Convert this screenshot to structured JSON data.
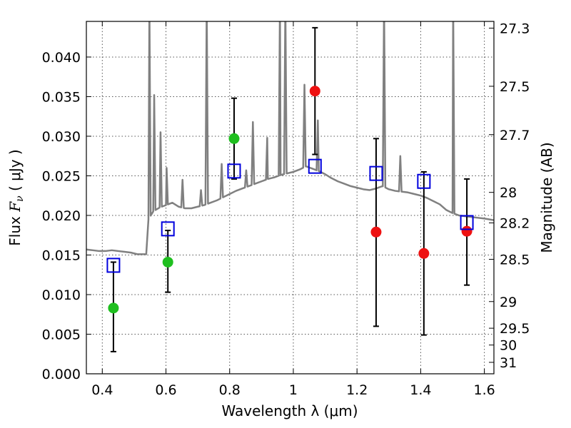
{
  "chart_data": {
    "type": "scatter",
    "xlabel": "Wavelength  λ (μm)",
    "ylabel": "Flux  F_ν  ( μJy )",
    "ylabel_parts": [
      "Flux  ",
      "F",
      "ν",
      "  ( μJy )"
    ],
    "y2label": "Magnitude (AB)",
    "xlim": [
      0.35,
      1.63
    ],
    "ylim": [
      0.0,
      0.0445
    ],
    "grid": true,
    "x_ticks": [
      0.4,
      0.6,
      0.8,
      1.0,
      1.2,
      1.4,
      1.6
    ],
    "x_tick_labels": [
      "0.4",
      "0.6",
      "0.8",
      "1",
      "1.2",
      "1.4",
      "1.6"
    ],
    "y_ticks": [
      0.0,
      0.005,
      0.01,
      0.015,
      0.02,
      0.025,
      0.03,
      0.035,
      0.04
    ],
    "y_tick_labels": [
      "0.000",
      "0.005",
      "0.010",
      "0.015",
      "0.020",
      "0.025",
      "0.030",
      "0.035",
      "0.040"
    ],
    "y2_ticks": [
      {
        "label": "27.3",
        "mag": 27.3
      },
      {
        "label": "27.5",
        "mag": 27.5
      },
      {
        "label": "27.7",
        "mag": 27.7
      },
      {
        "label": "28",
        "mag": 28.0
      },
      {
        "label": "28.2",
        "mag": 28.2
      },
      {
        "label": "28.5",
        "mag": 28.5
      },
      {
        "label": "29",
        "mag": 29.0
      },
      {
        "label": "29.5",
        "mag": 29.5
      },
      {
        "label": "30",
        "mag": 30.0
      },
      {
        "label": "31",
        "mag": 31.0
      }
    ],
    "colors": {
      "green": "#1fbf1f",
      "red": "#ee1111",
      "model": "#0000dd",
      "spectrum": "#808080",
      "errorbar": "#000000",
      "grid": "#555555"
    },
    "series": [
      {
        "marker": "circle",
        "color": "green",
        "points": [
          {
            "x": 0.435,
            "y": 0.0083,
            "err_lo": 0.0028,
            "err_hi": 0.0141
          },
          {
            "x": 0.606,
            "y": 0.0141,
            "err_lo": 0.0103,
            "err_hi": 0.0181
          },
          {
            "x": 0.814,
            "y": 0.0297,
            "err_lo": 0.0246,
            "err_hi": 0.0348
          }
        ]
      },
      {
        "marker": "circle",
        "color": "red",
        "points": [
          {
            "x": 1.068,
            "y": 0.0357,
            "err_lo": 0.0277,
            "err_hi": 0.0437
          },
          {
            "x": 1.26,
            "y": 0.0179,
            "err_lo": 0.006,
            "err_hi": 0.0297
          },
          {
            "x": 1.41,
            "y": 0.0152,
            "err_lo": 0.0049,
            "err_hi": 0.0255
          },
          {
            "x": 1.545,
            "y": 0.018,
            "err_lo": 0.0112,
            "err_hi": 0.0246
          }
        ]
      },
      {
        "marker": "square",
        "color": "model",
        "points": [
          {
            "x": 0.435,
            "y": 0.0137
          },
          {
            "x": 0.606,
            "y": 0.0183
          },
          {
            "x": 0.814,
            "y": 0.0256
          },
          {
            "x": 1.068,
            "y": 0.0262
          },
          {
            "x": 1.26,
            "y": 0.0253
          },
          {
            "x": 1.41,
            "y": 0.0243
          },
          {
            "x": 1.545,
            "y": 0.0191
          }
        ]
      }
    ],
    "spectrum": {
      "continuum": [
        [
          0.35,
          0.0157
        ],
        [
          0.37,
          0.0156
        ],
        [
          0.39,
          0.0155
        ],
        [
          0.41,
          0.0155
        ],
        [
          0.43,
          0.0156
        ],
        [
          0.45,
          0.0155
        ],
        [
          0.47,
          0.0154
        ],
        [
          0.49,
          0.0153
        ],
        [
          0.51,
          0.0151
        ],
        [
          0.53,
          0.0151
        ],
        [
          0.538,
          0.0151
        ],
        [
          0.545,
          0.0195
        ],
        [
          0.56,
          0.0205
        ],
        [
          0.58,
          0.021
        ],
        [
          0.6,
          0.0213
        ],
        [
          0.62,
          0.0216
        ],
        [
          0.64,
          0.0211
        ],
        [
          0.66,
          0.0209
        ],
        [
          0.68,
          0.0209
        ],
        [
          0.7,
          0.0211
        ],
        [
          0.72,
          0.0213
        ],
        [
          0.74,
          0.0216
        ],
        [
          0.76,
          0.0219
        ],
        [
          0.78,
          0.0223
        ],
        [
          0.8,
          0.0227
        ],
        [
          0.82,
          0.0231
        ],
        [
          0.84,
          0.0234
        ],
        [
          0.86,
          0.0237
        ],
        [
          0.88,
          0.024
        ],
        [
          0.9,
          0.0243
        ],
        [
          0.92,
          0.0246
        ],
        [
          0.94,
          0.0248
        ],
        [
          0.96,
          0.0251
        ],
        [
          0.98,
          0.0253
        ],
        [
          1.0,
          0.0255
        ],
        [
          1.02,
          0.0258
        ],
        [
          1.04,
          0.0262
        ],
        [
          1.06,
          0.0259
        ],
        [
          1.08,
          0.0256
        ],
        [
          1.1,
          0.0252
        ],
        [
          1.12,
          0.0247
        ],
        [
          1.14,
          0.0243
        ],
        [
          1.16,
          0.024
        ],
        [
          1.18,
          0.0237
        ],
        [
          1.2,
          0.0235
        ],
        [
          1.22,
          0.0233
        ],
        [
          1.24,
          0.0232
        ],
        [
          1.26,
          0.0234
        ],
        [
          1.28,
          0.0237
        ],
        [
          1.3,
          0.0233
        ],
        [
          1.32,
          0.0231
        ],
        [
          1.34,
          0.023
        ],
        [
          1.36,
          0.0229
        ],
        [
          1.38,
          0.0227
        ],
        [
          1.4,
          0.0225
        ],
        [
          1.42,
          0.0222
        ],
        [
          1.44,
          0.0218
        ],
        [
          1.46,
          0.0214
        ],
        [
          1.48,
          0.0207
        ],
        [
          1.5,
          0.0203
        ],
        [
          1.52,
          0.02
        ],
        [
          1.54,
          0.0199
        ],
        [
          1.56,
          0.0198
        ],
        [
          1.58,
          0.0197
        ],
        [
          1.6,
          0.0196
        ],
        [
          1.63,
          0.0194
        ]
      ],
      "lines": [
        {
          "x": 0.548,
          "peak": 0.047
        },
        {
          "x": 0.563,
          "peak": 0.0352
        },
        {
          "x": 0.583,
          "peak": 0.0305
        },
        {
          "x": 0.602,
          "peak": 0.026
        },
        {
          "x": 0.652,
          "peak": 0.0245
        },
        {
          "x": 0.71,
          "peak": 0.0232
        },
        {
          "x": 0.728,
          "peak": 0.047
        },
        {
          "x": 0.775,
          "peak": 0.0265
        },
        {
          "x": 0.852,
          "peak": 0.0257
        },
        {
          "x": 0.873,
          "peak": 0.0318
        },
        {
          "x": 0.918,
          "peak": 0.0298
        },
        {
          "x": 0.958,
          "peak": 0.047
        },
        {
          "x": 0.975,
          "peak": 0.047
        },
        {
          "x": 1.035,
          "peak": 0.0365
        },
        {
          "x": 1.077,
          "peak": 0.032
        },
        {
          "x": 1.285,
          "peak": 0.047
        },
        {
          "x": 1.336,
          "peak": 0.0275
        },
        {
          "x": 1.502,
          "peak": 0.047
        }
      ]
    }
  }
}
